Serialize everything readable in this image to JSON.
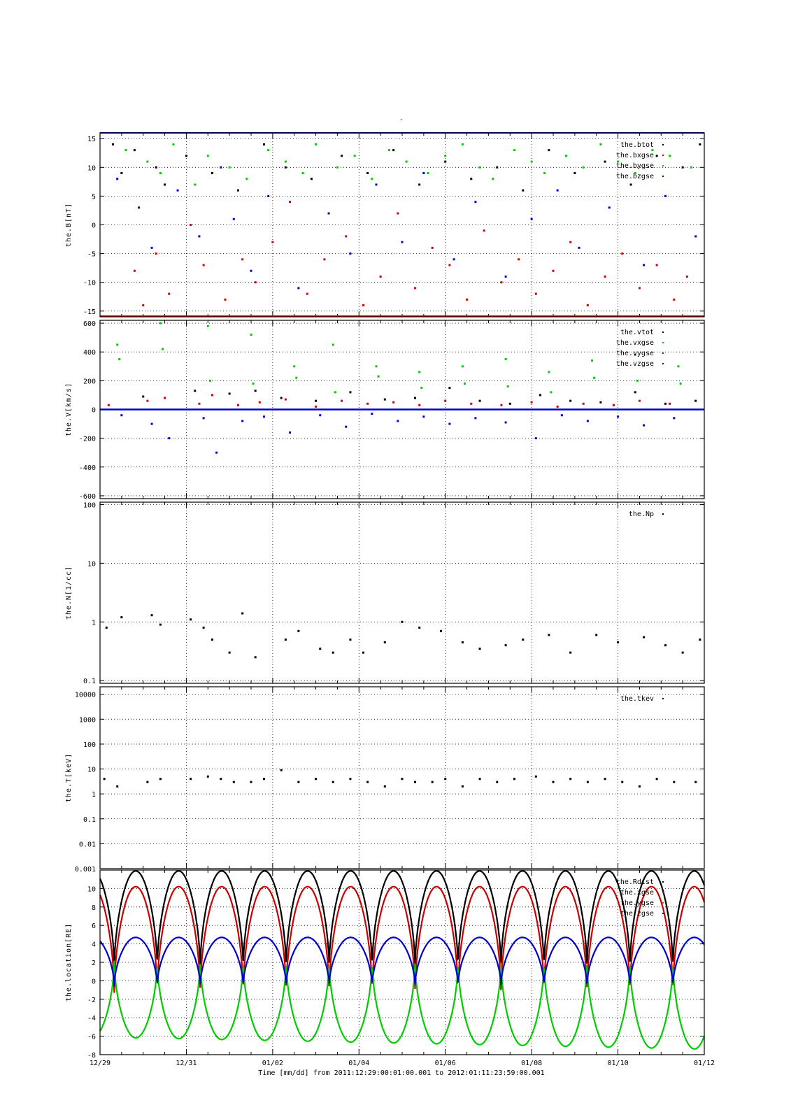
{
  "figure": {
    "top_title": "-",
    "footer": "Time [mm/dd]  from 2011:12:29:00:01:00.001  to  2012:01:11:23:59:00.001",
    "x_ticks": [
      "12/29",
      "12/31",
      "01/02",
      "01/04",
      "01/06",
      "01/08",
      "01/10",
      "01/12"
    ]
  },
  "colors": {
    "black": "#000000",
    "red": "#cc0000",
    "green": "#00cc00",
    "blue": "#0000cc"
  },
  "chart_data": [
    {
      "type": "scatter",
      "ylabel": "the.B[nT]",
      "ylim": [
        -16,
        16
      ],
      "yscale": "linear",
      "yticks": [
        15,
        10,
        5,
        0,
        -5,
        -10,
        -15
      ],
      "xlim": [
        0,
        14
      ],
      "grid": true,
      "legend_position": "top-right",
      "series": [
        {
          "name": "the.btot",
          "color": "black",
          "x": [
            0.3,
            0.5,
            0.8,
            1.3,
            1.5,
            2.0,
            2.6,
            3.2,
            3.8,
            4.3,
            4.9,
            5.6,
            6.2,
            6.8,
            7.4,
            8.0,
            8.6,
            9.2,
            9.8,
            10.4,
            11.0,
            11.7,
            12.3,
            12.9,
            13.5,
            13.9
          ],
          "y": [
            14,
            9,
            13,
            10,
            7,
            12,
            9,
            6,
            14,
            10,
            8,
            12,
            9,
            13,
            7,
            11,
            8,
            10,
            6,
            13,
            9,
            11,
            7,
            12,
            10,
            14
          ]
        },
        {
          "name": "the.bxgse",
          "color": "red",
          "x": [
            0.8,
            1.0,
            1.3,
            1.6,
            2.1,
            2.4,
            2.9,
            3.3,
            3.6,
            4.0,
            4.4,
            4.8,
            5.2,
            5.7,
            6.1,
            6.5,
            6.9,
            7.3,
            7.7,
            8.1,
            8.5,
            8.9,
            9.3,
            9.7,
            10.1,
            10.5,
            10.9,
            11.3,
            11.7,
            12.1,
            12.5,
            12.9,
            13.3,
            13.6
          ],
          "y": [
            -8,
            -14,
            -5,
            -12,
            0,
            -7,
            -13,
            -6,
            -10,
            -3,
            4,
            -12,
            -6,
            -2,
            -14,
            -9,
            2,
            -11,
            -4,
            -7,
            -13,
            -1,
            -10,
            -6,
            -12,
            -8,
            -3,
            -14,
            -9,
            -5,
            -11,
            -7,
            -13,
            -9
          ]
        },
        {
          "name": "the.bygse",
          "color": "green",
          "x": [
            0.6,
            1.1,
            1.4,
            1.7,
            2.2,
            2.5,
            3.0,
            3.4,
            3.9,
            4.3,
            4.7,
            5.0,
            5.5,
            5.9,
            6.3,
            6.7,
            7.1,
            7.6,
            8.0,
            8.4,
            8.8,
            9.1,
            9.6,
            10.0,
            10.3,
            10.8,
            11.2,
            11.6,
            12.0,
            12.4,
            12.8,
            13.2,
            13.7
          ],
          "y": [
            13,
            11,
            9,
            14,
            7,
            12,
            10,
            8,
            13,
            11,
            9,
            14,
            10,
            12,
            8,
            13,
            11,
            9,
            12,
            14,
            10,
            8,
            13,
            11,
            9,
            12,
            10,
            14,
            11,
            9,
            13,
            12,
            10
          ]
        },
        {
          "name": "the.bzgse",
          "color": "blue",
          "x": [
            0.4,
            0.9,
            1.2,
            1.8,
            2.3,
            2.8,
            3.1,
            3.5,
            3.9,
            4.6,
            5.3,
            5.8,
            6.4,
            7.0,
            7.5,
            8.2,
            8.7,
            9.4,
            10.0,
            10.6,
            11.1,
            11.8,
            12.6,
            13.1,
            13.8
          ],
          "y": [
            8,
            3,
            -4,
            6,
            -2,
            10,
            1,
            -8,
            5,
            -11,
            2,
            -5,
            7,
            -3,
            9,
            -6,
            4,
            -9,
            1,
            6,
            -4,
            3,
            -7,
            5,
            -2
          ]
        }
      ]
    },
    {
      "type": "scatter",
      "ylabel": "the.V[km/s]",
      "ylim": [
        -620,
        620
      ],
      "yscale": "linear",
      "yticks": [
        600,
        400,
        200,
        0,
        -200,
        -400,
        -600
      ],
      "xlim": [
        0,
        14
      ],
      "grid": true,
      "legend_position": "top-right",
      "series": [
        {
          "name": "the.vtot",
          "color": "black",
          "x": [
            1.0,
            2.2,
            3.0,
            3.6,
            4.2,
            5.0,
            5.8,
            6.6,
            7.3,
            8.1,
            8.8,
            9.5,
            10.2,
            10.9,
            11.6,
            12.4,
            13.1,
            13.8
          ],
          "y": [
            90,
            130,
            110,
            130,
            80,
            60,
            120,
            70,
            80,
            150,
            60,
            40,
            100,
            60,
            50,
            120,
            40,
            60
          ]
        },
        {
          "name": "the.vxgse",
          "color": "green",
          "x": [
            0.4,
            0.45,
            1.4,
            1.45,
            2.5,
            2.55,
            3.5,
            3.55,
            4.5,
            4.55,
            5.4,
            5.45,
            6.4,
            6.45,
            7.4,
            7.45,
            8.4,
            8.45,
            9.4,
            9.45,
            10.4,
            10.45,
            11.4,
            11.45,
            12.4,
            12.45,
            13.4,
            13.45
          ],
          "y": [
            450,
            350,
            600,
            420,
            580,
            200,
            520,
            180,
            300,
            220,
            450,
            120,
            300,
            230,
            260,
            150,
            300,
            180,
            350,
            160,
            260,
            120,
            340,
            220,
            380,
            200,
            300,
            180
          ]
        },
        {
          "name": "the.vygse",
          "color": "red",
          "x": [
            0.2,
            1.1,
            1.5,
            2.3,
            2.6,
            3.2,
            3.7,
            4.3,
            5.0,
            5.6,
            6.2,
            6.8,
            7.4,
            8.0,
            8.6,
            9.3,
            10.0,
            10.6,
            11.2,
            11.9,
            12.5,
            13.2
          ],
          "y": [
            30,
            60,
            80,
            40,
            100,
            30,
            50,
            70,
            20,
            60,
            40,
            50,
            30,
            60,
            40,
            30,
            50,
            20,
            40,
            30,
            60,
            40
          ]
        },
        {
          "name": "the.vzgse",
          "color": "blue",
          "x": [
            0.5,
            1.2,
            1.6,
            2.4,
            2.7,
            3.3,
            3.8,
            4.4,
            5.1,
            5.7,
            6.3,
            6.9,
            7.5,
            8.1,
            8.7,
            9.4,
            10.1,
            10.7,
            11.3,
            12.0,
            12.6,
            13.3
          ],
          "y": [
            -40,
            -100,
            -200,
            -60,
            -300,
            -80,
            -50,
            -160,
            -40,
            -120,
            -30,
            -80,
            -50,
            -100,
            -60,
            -90,
            -200,
            -40,
            -80,
            -50,
            -110,
            -60
          ]
        }
      ]
    },
    {
      "type": "scatter",
      "ylabel": "the.N[1/cc]",
      "ylim": [
        0.09,
        110
      ],
      "yscale": "log",
      "yticks": [
        100,
        10,
        1,
        0.1
      ],
      "xlim": [
        0,
        14
      ],
      "grid": true,
      "legend_position": "top-right",
      "series": [
        {
          "name": "the.Np",
          "color": "black",
          "x": [
            0.15,
            0.5,
            1.2,
            1.4,
            2.1,
            2.4,
            2.6,
            3.0,
            3.3,
            3.6,
            4.3,
            4.6,
            5.1,
            5.4,
            5.8,
            6.1,
            6.6,
            7.0,
            7.4,
            7.9,
            8.4,
            8.8,
            9.4,
            9.8,
            10.4,
            10.9,
            11.5,
            12.0,
            12.6,
            13.1,
            13.5,
            13.9
          ],
          "y": [
            0.8,
            1.2,
            1.3,
            0.9,
            1.1,
            0.8,
            0.5,
            0.3,
            1.4,
            0.25,
            0.5,
            0.7,
            0.35,
            0.3,
            0.5,
            0.3,
            0.45,
            1.0,
            0.8,
            0.7,
            0.45,
            0.35,
            0.4,
            0.5,
            0.6,
            0.3,
            0.6,
            0.45,
            0.55,
            0.4,
            0.3,
            0.5
          ]
        }
      ]
    },
    {
      "type": "scatter",
      "ylabel": "the.T[keV]",
      "ylim": [
        0.001,
        20000
      ],
      "yscale": "log",
      "yticks": [
        10000,
        1000,
        100,
        10,
        1,
        0.1,
        0.01,
        0.001
      ],
      "xlim": [
        0,
        14
      ],
      "grid": true,
      "legend_position": "top-right",
      "series": [
        {
          "name": "the.tkev",
          "color": "black",
          "x": [
            0.1,
            0.4,
            1.1,
            1.4,
            2.1,
            2.5,
            2.8,
            3.1,
            3.5,
            3.8,
            4.2,
            4.6,
            5.0,
            5.4,
            5.8,
            6.2,
            6.6,
            7.0,
            7.3,
            7.7,
            8.0,
            8.4,
            8.8,
            9.2,
            9.6,
            10.1,
            10.5,
            10.9,
            11.3,
            11.7,
            12.1,
            12.5,
            12.9,
            13.3,
            13.8
          ],
          "y": [
            4,
            2,
            3,
            4,
            4,
            5,
            4,
            3,
            3,
            4,
            9,
            3,
            4,
            3,
            4,
            3,
            2,
            4,
            3,
            3,
            4,
            2,
            4,
            3,
            4,
            5,
            3,
            4,
            3,
            4,
            3,
            2,
            4,
            3,
            3
          ]
        }
      ]
    },
    {
      "type": "line",
      "ylabel": "the.location[RE]",
      "ylim": [
        -8,
        12
      ],
      "yscale": "linear",
      "yticks": [
        10,
        8,
        6,
        4,
        2,
        0,
        -2,
        -4,
        -6,
        -8
      ],
      "xlim": [
        0,
        14
      ],
      "grid": true,
      "legend_position": "top-right",
      "orbit_period_days": 0.9956,
      "perigee_times": [
        0.33,
        1.33,
        2.32,
        3.32,
        4.31,
        5.31,
        6.31,
        7.3,
        8.3,
        9.29,
        10.29,
        11.28,
        12.28,
        13.27
      ],
      "series": [
        {
          "name": "the.Rdist",
          "color": "black",
          "apogee": 11.9,
          "perigee": 1.3
        },
        {
          "name": "the.xgse",
          "color": "red",
          "apogee": 10.2,
          "perigee": -1.3
        },
        {
          "name": "the.ygse",
          "color": "green",
          "apogee": -6.1,
          "apogee_end": -7.4,
          "perigee": 2.2
        },
        {
          "name": "the.zgse",
          "color": "blue",
          "apogee": 4.7,
          "perigee": -0.6
        }
      ]
    }
  ]
}
